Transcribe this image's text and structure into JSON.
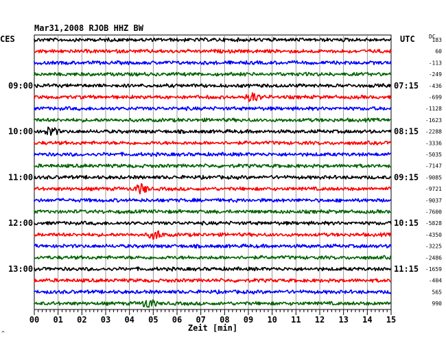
{
  "title": "Mar31,2008  RJOB HHZ BW",
  "left_axis_label": "CES",
  "right_axis_label": "UTC",
  "right_corner_label": "DC",
  "footer_mark": "^",
  "chart_data": {
    "type": "line",
    "title": "Mar31,2008  RJOB HHZ BW",
    "xlabel": "Zeit [min]",
    "xlim": [
      0,
      15
    ],
    "x_ticks": [
      "00",
      "01",
      "02",
      "03",
      "04",
      "05",
      "06",
      "07",
      "08",
      "09",
      "10",
      "11",
      "12",
      "13",
      "14",
      "15"
    ],
    "trace_count": 24,
    "trace_colors": [
      "#000000",
      "#ff0000",
      "#0000ff",
      "#006400"
    ],
    "left_time_labels": [
      {
        "trace": 4,
        "label": "09:00"
      },
      {
        "trace": 8,
        "label": "10:00"
      },
      {
        "trace": 12,
        "label": "11:00"
      },
      {
        "trace": 16,
        "label": "12:00"
      },
      {
        "trace": 20,
        "label": "13:00"
      }
    ],
    "right_time_labels": [
      {
        "trace": 4,
        "label": "07:15"
      },
      {
        "trace": 8,
        "label": "08:15"
      },
      {
        "trace": 12,
        "label": "09:15"
      },
      {
        "trace": 16,
        "label": "10:15"
      },
      {
        "trace": 20,
        "label": "11:15"
      }
    ],
    "dc_offsets": [
      "183",
      "60",
      "-113",
      "-249",
      "-436",
      "-699",
      "-1128",
      "-1623",
      "-2288",
      "-3336",
      "-5035",
      "-7147",
      "-9085",
      "-9721",
      "-9037",
      "-7600",
      "-5828",
      "-4350",
      "-3225",
      "-2486",
      "-1659",
      "-404",
      "565",
      "990"
    ],
    "events": [
      {
        "trace": 5,
        "minute": 9.2
      },
      {
        "trace": 8,
        "minute": 0.7
      },
      {
        "trace": 13,
        "minute": 4.5
      },
      {
        "trace": 17,
        "minute": 5.1
      },
      {
        "trace": 23,
        "minute": 4.8
      }
    ]
  }
}
